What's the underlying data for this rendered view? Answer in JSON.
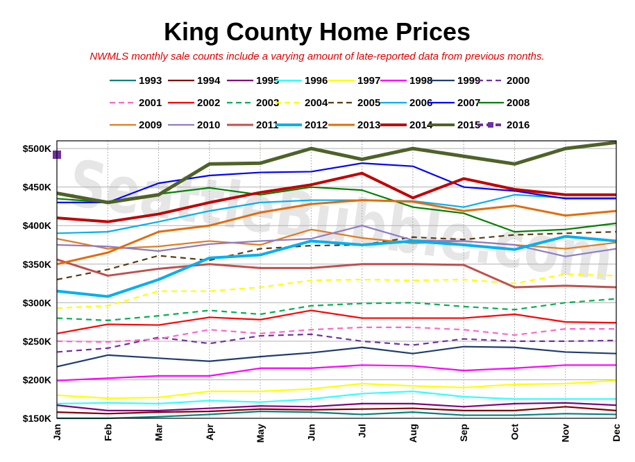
{
  "chart_data": {
    "type": "line",
    "title": "King County Home Prices",
    "subtitle": "NWMLS monthly sale counts include a varying amount of late-reported  data from previous months.",
    "watermark": "SeattleBubble.com",
    "x": [
      "Jan",
      "Feb",
      "Mar",
      "Apr",
      "May",
      "Jun",
      "Jul",
      "Aug",
      "Sep",
      "Oct",
      "Nov",
      "Dec"
    ],
    "ylim": [
      150000,
      510000
    ],
    "yticks": [
      150000,
      200000,
      250000,
      300000,
      350000,
      400000,
      450000,
      500000
    ],
    "ytick_labels": [
      "$150K",
      "$200K",
      "$250K",
      "$300K",
      "$350K",
      "$400K",
      "$450K",
      "$500K"
    ],
    "grid": true,
    "legend_position": "top",
    "series": [
      {
        "name": "1993",
        "color": "#008080",
        "dash": false,
        "width": 2.2,
        "values": [
          150000,
          150000,
          152000,
          155000,
          159000,
          158000,
          155000,
          158000,
          154000,
          154000,
          156000,
          155000
        ]
      },
      {
        "name": "1994",
        "color": "#800000",
        "dash": false,
        "width": 2.2,
        "values": [
          158000,
          156000,
          158000,
          159000,
          162000,
          161000,
          162000,
          163000,
          160000,
          160000,
          165000,
          160000
        ]
      },
      {
        "name": "1995",
        "color": "#800080",
        "dash": false,
        "width": 2.2,
        "values": [
          167000,
          160000,
          160000,
          163000,
          166000,
          165000,
          169000,
          169000,
          165000,
          169000,
          170000,
          167000
        ]
      },
      {
        "name": "1996",
        "color": "#33ffff",
        "dash": false,
        "width": 2.2,
        "values": [
          169000,
          170000,
          169000,
          173000,
          171000,
          175000,
          182000,
          185000,
          178000,
          175000,
          175000,
          175000
        ]
      },
      {
        "name": "1997",
        "color": "#ffff00",
        "dash": false,
        "width": 2.2,
        "values": [
          180000,
          176000,
          177000,
          185000,
          185000,
          188000,
          195000,
          192000,
          190000,
          194000,
          195000,
          199000
        ]
      },
      {
        "name": "1998",
        "color": "#ff00ff",
        "dash": false,
        "width": 2.2,
        "values": [
          199000,
          202000,
          205000,
          205000,
          215000,
          215000,
          219000,
          218000,
          212000,
          215000,
          219000,
          219000
        ]
      },
      {
        "name": "1999",
        "color": "#1f3c6e",
        "dash": false,
        "width": 2.2,
        "values": [
          217000,
          232000,
          228000,
          224000,
          230000,
          235000,
          242000,
          234000,
          243000,
          242000,
          236000,
          234000
        ]
      },
      {
        "name": "2000",
        "color": "#7030a0",
        "dash": true,
        "width": 2.2,
        "values": [
          236000,
          241000,
          255000,
          247000,
          257000,
          259000,
          250000,
          245000,
          253000,
          250000,
          250000,
          251000
        ]
      },
      {
        "name": "2001",
        "color": "#ff66cc",
        "dash": true,
        "width": 2.2,
        "values": [
          250000,
          249000,
          253000,
          265000,
          260000,
          265000,
          268000,
          268000,
          265000,
          258000,
          266000,
          266000
        ]
      },
      {
        "name": "2002",
        "color": "#ff0000",
        "dash": false,
        "width": 2.2,
        "values": [
          260000,
          272000,
          271000,
          281000,
          278000,
          290000,
          280000,
          280000,
          280000,
          285000,
          275000,
          274000
        ]
      },
      {
        "name": "2003",
        "color": "#00b050",
        "dash": true,
        "width": 2.2,
        "values": [
          280000,
          277000,
          283000,
          290000,
          285000,
          296000,
          299000,
          300000,
          295000,
          291000,
          300000,
          305000
        ]
      },
      {
        "name": "2004",
        "color": "#ffff00",
        "dash": true,
        "width": 2.2,
        "values": [
          293000,
          296000,
          315000,
          315000,
          320000,
          329000,
          330000,
          329000,
          330000,
          325000,
          337000,
          335000
        ]
      },
      {
        "name": "2005",
        "color": "#5a3a10",
        "dash": true,
        "width": 2.2,
        "values": [
          330000,
          343000,
          361000,
          355000,
          370000,
          374000,
          375000,
          385000,
          382000,
          388000,
          390000,
          392000
        ]
      },
      {
        "name": "2006",
        "color": "#00b0f0",
        "dash": false,
        "width": 2.2,
        "values": [
          390000,
          392000,
          405000,
          419000,
          430000,
          433000,
          433000,
          432000,
          424000,
          440000,
          436000,
          436000
        ]
      },
      {
        "name": "2007",
        "color": "#0000ff",
        "dash": false,
        "width": 2.2,
        "values": [
          430000,
          430000,
          455000,
          465000,
          469000,
          470000,
          481000,
          477000,
          450000,
          445000,
          435000,
          435000
        ]
      },
      {
        "name": "2008",
        "color": "#008000",
        "dash": false,
        "width": 2.2,
        "values": [
          435000,
          430000,
          441000,
          449000,
          440000,
          450000,
          446000,
          424000,
          416000,
          392000,
          395000,
          403000
        ]
      },
      {
        "name": "2009",
        "color": "#e07b20",
        "dash": false,
        "width": 2.2,
        "values": [
          383000,
          370000,
          373000,
          380000,
          375000,
          395000,
          384000,
          377000,
          380000,
          375000,
          370000,
          378000
        ]
      },
      {
        "name": "2010",
        "color": "#8e7cc3",
        "dash": false,
        "width": 2.2,
        "values": [
          375000,
          373000,
          367000,
          376000,
          380000,
          383000,
          400000,
          381000,
          380000,
          375000,
          360000,
          370000
        ]
      },
      {
        "name": "2011",
        "color": "#c0504d",
        "dash": false,
        "width": 3,
        "values": [
          356000,
          335000,
          344000,
          350000,
          345000,
          345000,
          350000,
          350000,
          349000,
          320000,
          322000,
          320000
        ]
      },
      {
        "name": "2012",
        "color": "#00b0f0",
        "dash": false,
        "width": 4,
        "values": [
          315000,
          308000,
          330000,
          358000,
          362000,
          380000,
          375000,
          380000,
          375000,
          369000,
          386000,
          380000
        ]
      },
      {
        "name": "2013",
        "color": "#e36c09",
        "dash": false,
        "width": 3,
        "values": [
          350000,
          365000,
          392000,
          400000,
          417000,
          428000,
          433000,
          431000,
          419000,
          426000,
          413000,
          419000
        ]
      },
      {
        "name": "2014",
        "color": "#c00000",
        "dash": false,
        "width": 4,
        "values": [
          410000,
          405000,
          415000,
          430000,
          443000,
          453000,
          468000,
          436000,
          461000,
          447000,
          440000,
          440000
        ]
      },
      {
        "name": "2015",
        "color": "#4f6228",
        "dash": false,
        "width": 5,
        "values": [
          442000,
          430000,
          440000,
          480000,
          481000,
          500000,
          486000,
          500000,
          490000,
          480000,
          500000,
          508000
        ]
      },
      {
        "name": "2016",
        "color": "#7030a0",
        "dash": true,
        "width": 4,
        "values": [
          492000,
          null,
          null,
          null,
          null,
          null,
          null,
          null,
          null,
          null,
          null,
          null
        ]
      }
    ]
  }
}
